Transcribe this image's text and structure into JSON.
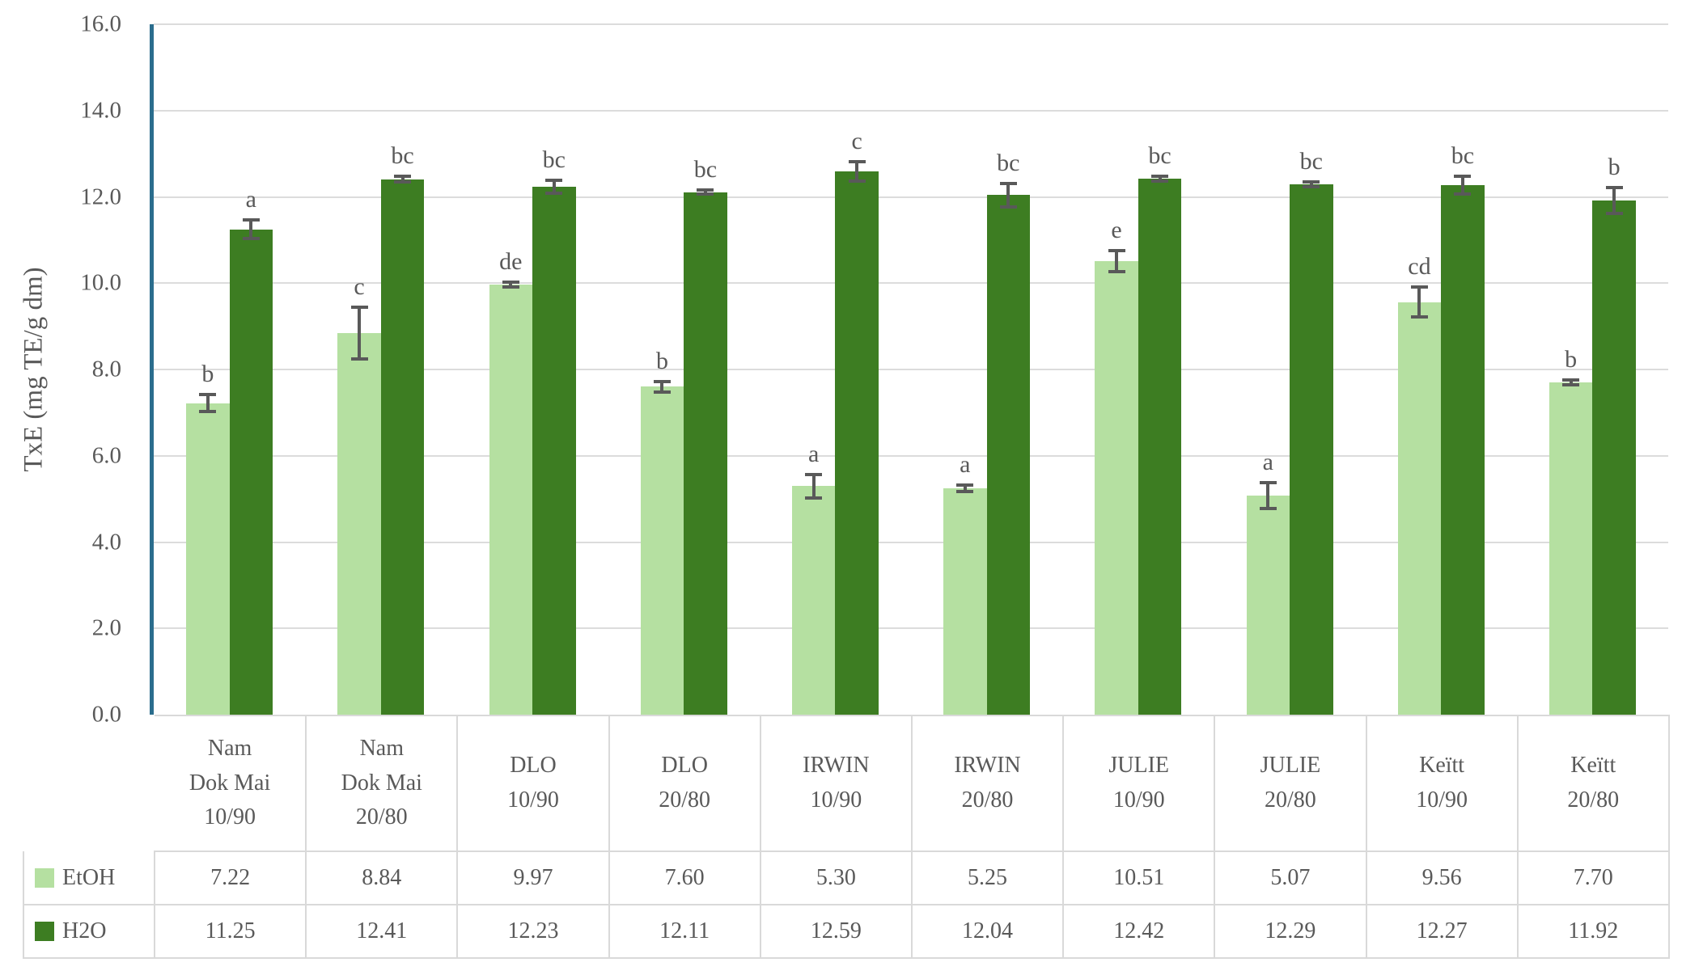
{
  "chart_data": {
    "type": "bar",
    "title": "",
    "xlabel": "",
    "ylabel": "TxE (mg TE/g dm)",
    "ylim": [
      0,
      16
    ],
    "ytick_step": 2,
    "yticks": [
      "0.0",
      "2.0",
      "4.0",
      "6.0",
      "8.0",
      "10.0",
      "12.0",
      "14.0",
      "16.0"
    ],
    "grid": true,
    "legend_position": "table-left",
    "categories": [
      "Nam Dok Mai 10/90",
      "Nam Dok Mai 20/80",
      "DLO 10/90",
      "DLO 20/80",
      "IRWIN 10/90",
      "IRWIN 20/80",
      "JULIE 10/90",
      "JULIE 20/80",
      "Keïtt 10/90",
      "Keïtt 20/80"
    ],
    "category_lines": [
      [
        "Nam",
        "Dok Mai",
        "10/90"
      ],
      [
        "Nam",
        "Dok Mai",
        "20/80"
      ],
      [
        "DLO",
        "10/90"
      ],
      [
        "DLO",
        "20/80"
      ],
      [
        "IRWIN",
        "10/90"
      ],
      [
        "IRWIN",
        "20/80"
      ],
      [
        "JULIE",
        "10/90"
      ],
      [
        "JULIE",
        "20/80"
      ],
      [
        "Keïtt",
        "10/90"
      ],
      [
        "Keïtt",
        "20/80"
      ]
    ],
    "series": [
      {
        "name": "EtOH",
        "color": "#b5e0a1",
        "values": [
          7.22,
          8.84,
          9.97,
          7.6,
          5.3,
          5.25,
          10.51,
          5.07,
          9.56,
          7.7
        ],
        "value_labels": [
          "7.22",
          "8.84",
          "9.97",
          "7.60",
          "5.30",
          "5.25",
          "10.51",
          "5.07",
          "9.56",
          "7.70"
        ],
        "errors": [
          0.2,
          0.6,
          0.05,
          0.12,
          0.27,
          0.08,
          0.25,
          0.3,
          0.35,
          0.06
        ],
        "sig_letters": [
          "b",
          "c",
          "de",
          "b",
          "a",
          "a",
          "e",
          "a",
          "cd",
          "b"
        ]
      },
      {
        "name": "H2O",
        "color": "#3d7d22",
        "values": [
          11.25,
          12.41,
          12.23,
          12.11,
          12.59,
          12.04,
          12.42,
          12.29,
          12.27,
          11.92
        ],
        "value_labels": [
          "11.25",
          "12.41",
          "12.23",
          "12.11",
          "12.59",
          "12.04",
          "12.42",
          "12.29",
          "12.27",
          "11.92"
        ],
        "errors": [
          0.22,
          0.06,
          0.15,
          0.05,
          0.22,
          0.27,
          0.05,
          0.05,
          0.2,
          0.3
        ],
        "sig_letters": [
          "a",
          "bc",
          "bc",
          "bc",
          "c",
          "bc",
          "bc",
          "bc",
          "bc",
          "b"
        ]
      }
    ],
    "colors": {
      "axis_line": "#2b6d8d",
      "gridline": "#dcdcdc",
      "table_border": "#d9d9d9",
      "text": "#595959",
      "error_bar": "#595959"
    }
  }
}
